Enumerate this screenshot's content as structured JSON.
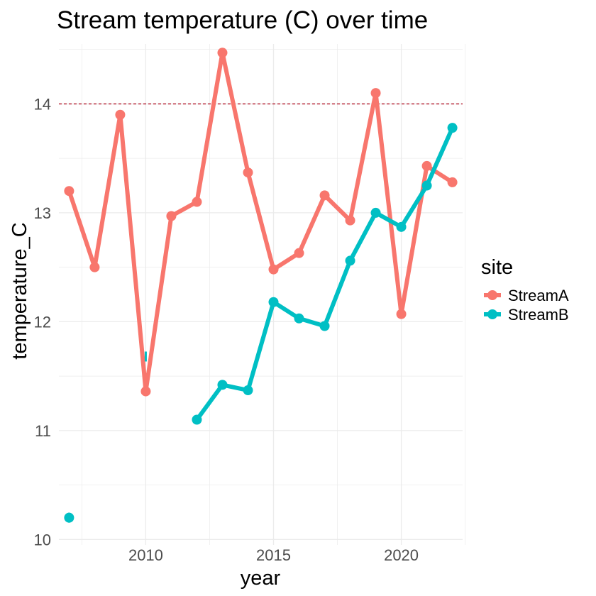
{
  "chart_data": {
    "type": "line",
    "title": "Stream temperature (C) over time",
    "xlabel": "year",
    "ylabel": "temperature_C",
    "xlim": [
      2006.6,
      2022.4
    ],
    "ylim": [
      9.95,
      14.55
    ],
    "x_ticks": [
      2010,
      2015,
      2020
    ],
    "x_tick_labels": [
      "2010",
      "2015",
      "2020"
    ],
    "x_minor_ticks": [
      2007.5,
      2012.5,
      2017.5,
      2022.5
    ],
    "y_ticks": [
      10,
      11,
      12,
      13,
      14
    ],
    "y_tick_labels": [
      "10",
      "11",
      "12",
      "13",
      "14"
    ],
    "y_minor_ticks": [
      10.5,
      11.5,
      12.5,
      13.5,
      14.5
    ],
    "grid": true,
    "reference_line": {
      "y": 14,
      "style": "dashed",
      "color": "#b2182b"
    },
    "legend": {
      "title": "site",
      "position": "right"
    },
    "series": [
      {
        "name": "StreamA",
        "color": "#F8766D",
        "x": [
          2007,
          2008,
          2009,
          2010,
          2011,
          2012,
          2013,
          2014,
          2015,
          2016,
          2017,
          2018,
          2019,
          2020,
          2021,
          2022
        ],
        "y": [
          13.2,
          12.5,
          13.9,
          11.36,
          12.97,
          13.1,
          14.47,
          13.37,
          12.48,
          12.63,
          13.16,
          12.93,
          14.1,
          12.07,
          13.43,
          13.28
        ]
      },
      {
        "name": "StreamB",
        "color": "#00BFC4",
        "x": [
          2007,
          2008,
          2009,
          2010,
          2011,
          2012,
          2013,
          2014,
          2015,
          2016,
          2017,
          2018,
          2019,
          2020,
          2021,
          2022
        ],
        "y": [
          10.2,
          null,
          null,
          11.68,
          null,
          11.1,
          11.42,
          11.37,
          12.18,
          12.03,
          11.96,
          12.56,
          13.0,
          12.87,
          13.25,
          13.78
        ]
      }
    ]
  }
}
